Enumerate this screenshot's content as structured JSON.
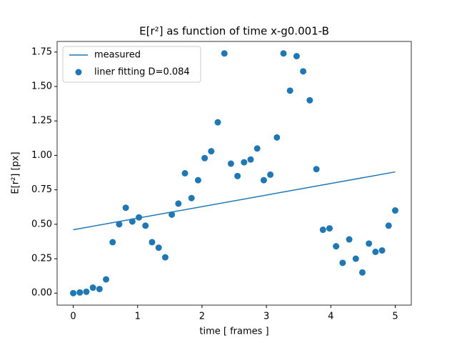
{
  "chart_data": {
    "type": "line+scatter",
    "title": "E[r²] as function of time x-g0.001-B",
    "xlabel": "time [ frames ]",
    "ylabel": "E[r²] [px]",
    "xlim": [
      -0.25,
      5.25
    ],
    "ylim": [
      -0.087,
      1.827
    ],
    "xticks": [
      0,
      1,
      2,
      3,
      4,
      5
    ],
    "yticks": [
      {
        "value": 0,
        "label": "0.00"
      },
      {
        "value": 0.25,
        "label": "0.25"
      },
      {
        "value": 0.5,
        "label": "0.50"
      },
      {
        "value": 0.75,
        "label": "0.75"
      },
      {
        "value": 1,
        "label": "1.00"
      },
      {
        "value": 1.25,
        "label": "1.25"
      },
      {
        "value": 1.5,
        "label": "1.50"
      },
      {
        "value": 1.75,
        "label": "1.75"
      }
    ],
    "legend": "upper left",
    "series": [
      {
        "name": "measured",
        "kind": "line",
        "color": "#1f77b4",
        "x": [
          0,
          5
        ],
        "values": [
          0.46,
          0.88
        ]
      },
      {
        "name": "liner fitting D=0.084",
        "kind": "scatter",
        "color": "#1f77b4",
        "x": [
          0,
          0.102,
          0.204,
          0.306,
          0.408,
          0.51,
          0.612,
          0.714,
          0.816,
          0.918,
          1.02,
          1.122,
          1.224,
          1.327,
          1.429,
          1.531,
          1.633,
          1.735,
          1.837,
          1.939,
          2.041,
          2.143,
          2.245,
          2.347,
          2.449,
          2.551,
          2.653,
          2.755,
          2.857,
          2.959,
          3.061,
          3.163,
          3.265,
          3.367,
          3.469,
          3.571,
          3.673,
          3.776,
          3.878,
          3.98,
          4.082,
          4.184,
          4.286,
          4.388,
          4.49,
          4.592,
          4.694,
          4.796,
          4.898,
          5
        ],
        "values": [
          0.0,
          0.005,
          0.01,
          0.04,
          0.03,
          0.1,
          0.37,
          0.5,
          0.62,
          0.52,
          0.55,
          0.49,
          0.37,
          0.33,
          0.26,
          0.57,
          0.65,
          0.87,
          0.69,
          0.82,
          0.98,
          1.03,
          1.24,
          1.74,
          0.94,
          0.85,
          0.95,
          0.97,
          1.05,
          0.82,
          0.86,
          1.13,
          1.74,
          1.47,
          1.72,
          1.61,
          1.4,
          0.9,
          0.46,
          0.47,
          0.34,
          0.22,
          0.39,
          0.25,
          0.15,
          0.36,
          0.3,
          0.31,
          0.49,
          0.6
        ]
      }
    ]
  }
}
